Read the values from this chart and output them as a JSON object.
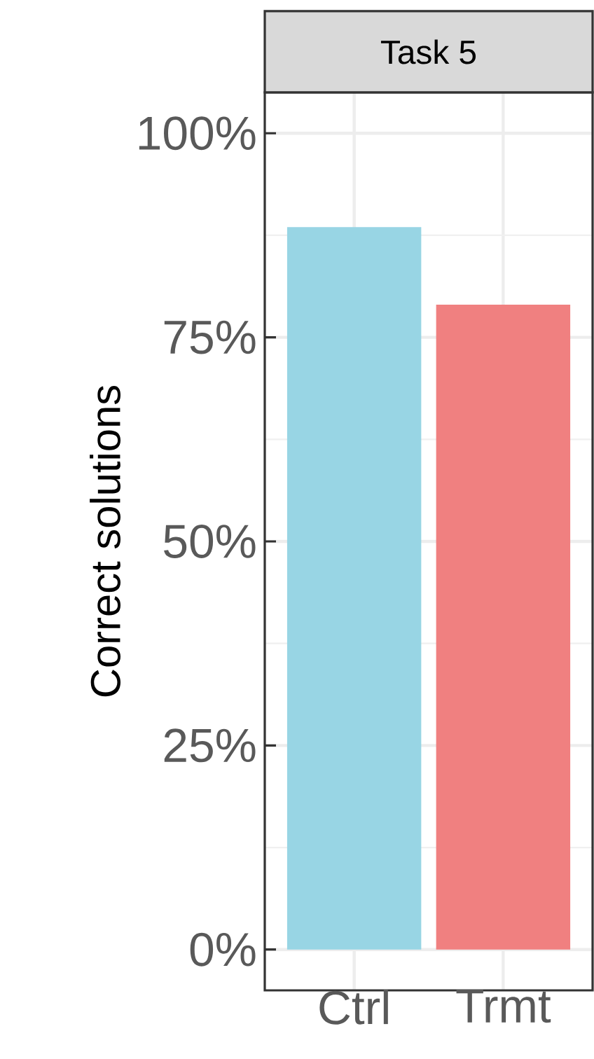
{
  "chart_data": {
    "type": "bar",
    "title": "Task 5",
    "ylabel": "Correct solutions",
    "categories": [
      "Ctrl",
      "Trmt"
    ],
    "values": [
      88.5,
      79.0
    ],
    "colors": [
      "#98d5e4",
      "#f08080"
    ],
    "ylim": [
      -5,
      105
    ],
    "yticks": [
      {
        "value": 0,
        "label": "0%"
      },
      {
        "value": 25,
        "label": "25%"
      },
      {
        "value": 50,
        "label": "50%"
      },
      {
        "value": 75,
        "label": "75%"
      },
      {
        "value": 100,
        "label": "100%"
      }
    ],
    "grid": true
  }
}
